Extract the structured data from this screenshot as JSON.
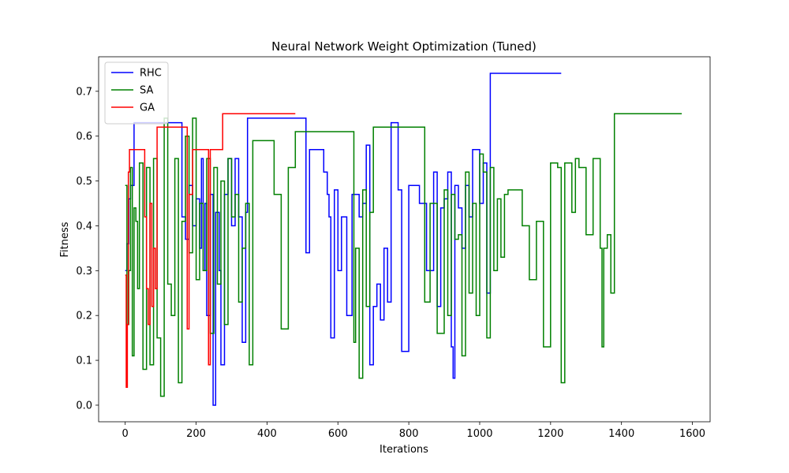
{
  "chart_data": {
    "type": "line",
    "title": "Neural Network Weight Optimization (Tuned)",
    "xlabel": "Iterations",
    "ylabel": "Fitness",
    "xlim": [
      -75,
      1650
    ],
    "ylim": [
      -0.037,
      0.777
    ],
    "xticks": [
      0,
      200,
      400,
      600,
      800,
      1000,
      1200,
      1400,
      1600
    ],
    "xtick_labels": [
      "0",
      "200",
      "400",
      "600",
      "800",
      "1000",
      "1200",
      "1400",
      "1600"
    ],
    "yticks": [
      0.0,
      0.1,
      0.2,
      0.3,
      0.4,
      0.5,
      0.6,
      0.7
    ],
    "ytick_labels": [
      "0.0",
      "0.1",
      "0.2",
      "0.3",
      "0.4",
      "0.5",
      "0.6",
      "0.7"
    ],
    "grid": false,
    "legend_position": "top-left",
    "series": [
      {
        "name": "RHC",
        "color": "#0000ff",
        "x": [
          0,
          5,
          10,
          15,
          20,
          25,
          40,
          60,
          80,
          100,
          120,
          140,
          150,
          160,
          170,
          180,
          190,
          200,
          210,
          215,
          220,
          225,
          230,
          240,
          248,
          255,
          265,
          270,
          280,
          290,
          300,
          310,
          320,
          330,
          340,
          345,
          400,
          440,
          505,
          510,
          520,
          560,
          565,
          570,
          575,
          580,
          590,
          600,
          610,
          625,
          640,
          660,
          670,
          680,
          690,
          700,
          710,
          720,
          730,
          740,
          750,
          760,
          770,
          780,
          800,
          830,
          850,
          870,
          880,
          890,
          900,
          910,
          920,
          925,
          930,
          940,
          950,
          960,
          970,
          980,
          990,
          1000,
          1010,
          1020,
          1030,
          1060,
          1100,
          1150,
          1200,
          1230
        ],
        "y": [
          0.3,
          0.36,
          0.46,
          0.49,
          0.49,
          0.63,
          0.63,
          0.63,
          0.63,
          0.63,
          0.63,
          0.63,
          0.63,
          0.42,
          0.37,
          0.49,
          0.4,
          0.46,
          0.35,
          0.55,
          0.3,
          0.45,
          0.2,
          0.47,
          0.0,
          0.43,
          0.3,
          0.09,
          0.47,
          0.55,
          0.4,
          0.55,
          0.42,
          0.14,
          0.43,
          0.64,
          0.64,
          0.64,
          0.64,
          0.34,
          0.57,
          0.52,
          0.52,
          0.47,
          0.42,
          0.15,
          0.48,
          0.3,
          0.42,
          0.2,
          0.47,
          0.42,
          0.45,
          0.58,
          0.09,
          0.22,
          0.27,
          0.19,
          0.35,
          0.23,
          0.63,
          0.63,
          0.48,
          0.12,
          0.49,
          0.45,
          0.3,
          0.52,
          0.22,
          0.44,
          0.46,
          0.52,
          0.13,
          0.06,
          0.49,
          0.44,
          0.35,
          0.49,
          0.42,
          0.57,
          0.57,
          0.45,
          0.54,
          0.25,
          0.74,
          0.74,
          0.74,
          0.74,
          0.74,
          0.74
        ]
      },
      {
        "name": "SA",
        "color": "#008000",
        "x": [
          0,
          5,
          10,
          15,
          20,
          25,
          30,
          35,
          40,
          50,
          60,
          70,
          80,
          90,
          100,
          110,
          120,
          130,
          140,
          150,
          160,
          170,
          180,
          190,
          200,
          210,
          220,
          230,
          240,
          250,
          260,
          270,
          280,
          290,
          300,
          310,
          320,
          330,
          340,
          350,
          360,
          380,
          400,
          420,
          440,
          460,
          470,
          480,
          500,
          520,
          560,
          600,
          640,
          645,
          650,
          660,
          670,
          680,
          690,
          700,
          710,
          730,
          760,
          800,
          840,
          845,
          860,
          880,
          900,
          910,
          920,
          930,
          940,
          950,
          960,
          970,
          980,
          990,
          1000,
          1010,
          1020,
          1030,
          1040,
          1050,
          1060,
          1070,
          1080,
          1100,
          1120,
          1140,
          1160,
          1180,
          1200,
          1220,
          1230,
          1240,
          1260,
          1270,
          1280,
          1300,
          1320,
          1340,
          1345,
          1350,
          1360,
          1370,
          1380,
          1400,
          1450,
          1500,
          1550,
          1570
        ],
        "y": [
          0.49,
          0.18,
          0.3,
          0.53,
          0.11,
          0.44,
          0.41,
          0.26,
          0.54,
          0.08,
          0.53,
          0.09,
          0.55,
          0.15,
          0.02,
          0.64,
          0.27,
          0.2,
          0.55,
          0.05,
          0.41,
          0.6,
          0.34,
          0.64,
          0.28,
          0.45,
          0.3,
          0.55,
          0.16,
          0.53,
          0.27,
          0.5,
          0.18,
          0.55,
          0.42,
          0.47,
          0.23,
          0.35,
          0.45,
          0.09,
          0.59,
          0.59,
          0.59,
          0.47,
          0.17,
          0.53,
          0.53,
          0.61,
          0.61,
          0.61,
          0.61,
          0.61,
          0.61,
          0.14,
          0.35,
          0.06,
          0.48,
          0.22,
          0.43,
          0.62,
          0.62,
          0.62,
          0.62,
          0.62,
          0.62,
          0.23,
          0.45,
          0.16,
          0.48,
          0.2,
          0.47,
          0.37,
          0.38,
          0.11,
          0.52,
          0.25,
          0.45,
          0.2,
          0.56,
          0.52,
          0.15,
          0.53,
          0.3,
          0.46,
          0.33,
          0.47,
          0.48,
          0.48,
          0.4,
          0.28,
          0.41,
          0.13,
          0.54,
          0.53,
          0.05,
          0.54,
          0.43,
          0.55,
          0.53,
          0.38,
          0.55,
          0.35,
          0.13,
          0.35,
          0.38,
          0.25,
          0.65,
          0.65,
          0.65,
          0.65,
          0.65,
          0.65
        ]
      },
      {
        "name": "GA",
        "color": "#ff0000",
        "x": [
          0,
          3,
          6,
          9,
          12,
          20,
          30,
          40,
          50,
          55,
          60,
          65,
          70,
          75,
          80,
          85,
          90,
          100,
          120,
          140,
          160,
          170,
          175,
          180,
          190,
          200,
          220,
          230,
          235,
          240,
          260,
          270,
          275,
          300,
          350,
          400,
          450,
          480
        ],
        "y": [
          0.29,
          0.04,
          0.18,
          0.52,
          0.57,
          0.57,
          0.57,
          0.57,
          0.57,
          0.42,
          0.26,
          0.18,
          0.45,
          0.22,
          0.35,
          0.26,
          0.62,
          0.62,
          0.62,
          0.62,
          0.62,
          0.62,
          0.17,
          0.47,
          0.57,
          0.57,
          0.57,
          0.57,
          0.09,
          0.57,
          0.57,
          0.57,
          0.65,
          0.65,
          0.65,
          0.65,
          0.65,
          0.65
        ]
      }
    ]
  }
}
